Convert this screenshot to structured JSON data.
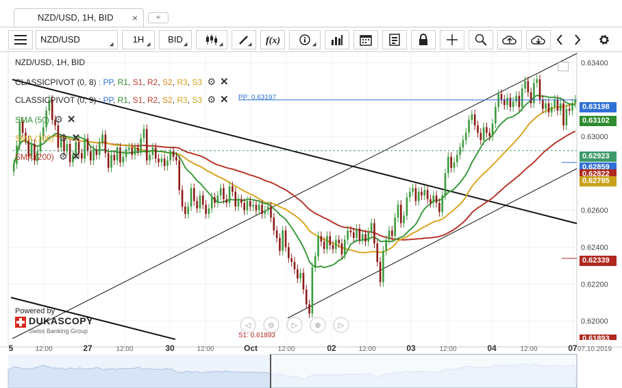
{
  "tab": {
    "title": "NZD/USD, 1H, BID",
    "close": "×",
    "new": "+"
  },
  "toolbar": {
    "instrument": "NZD/USD",
    "period": "1H",
    "side": "BID"
  },
  "legend": {
    "title": "NZD/USD, 1H, BID",
    "pivots": [
      {
        "name": "CLASSICPIVOT (0, 8)",
        "levels": [
          "PP",
          "R1",
          "S1",
          "R2",
          "S2",
          "R3",
          "S3"
        ]
      },
      {
        "name": "CLASSICPIVOT (0, 9)",
        "levels": [
          "PP",
          "R1",
          "S1",
          "R2",
          "S2",
          "R3",
          "S3"
        ]
      }
    ],
    "smas": [
      {
        "label": "SMA (50)",
        "color": "#3c9a3c"
      },
      {
        "label": "SMA (100)",
        "color": "#d9a521"
      },
      {
        "label": "SMA (200)",
        "color": "#b8352a"
      }
    ]
  },
  "branding": {
    "powered": "Powered by",
    "name": "DUKASCOPY",
    "tagline": "Swiss Banking Group"
  },
  "nav_icons": [
    "scroll-left-icon",
    "zoom-out-icon",
    "reset-zoom-icon",
    "zoom-in-icon",
    "scroll-right-icon"
  ],
  "chart_data": {
    "type": "candlestick",
    "ylim": [
      0.619,
      0.6345
    ],
    "yticks": [
      "0.63400",
      "0.63000",
      "0.62600",
      "0.62400",
      "0.62200",
      "0.62000"
    ],
    "yticks_values": [
      0.634,
      0.63,
      0.626,
      0.624,
      0.622,
      0.62
    ],
    "xticks": [
      "5",
      "12:00",
      "27",
      "12:00",
      "30",
      "12:00",
      "Oct",
      "12:00",
      "02",
      "12:00",
      "03",
      "12:00",
      "04",
      "12:00",
      "07",
      "07.10.2019"
    ],
    "xticks_bold": [
      true,
      false,
      true,
      false,
      true,
      false,
      true,
      false,
      true,
      false,
      true,
      false,
      true,
      false,
      true,
      false
    ],
    "pp_label": "PP: 0.63197",
    "s1_label": "S1: 0.61893",
    "price_tags": [
      {
        "value": 0.63198,
        "label": "0.63198",
        "color": "#2f6fd6"
      },
      {
        "value": 0.63102,
        "label": "0.63102",
        "color": "#2e8b2e"
      },
      {
        "value": 0.62923,
        "label": "0.62923",
        "color": "#3c9a6a"
      },
      {
        "value": 0.62859,
        "label": "0.62859",
        "color": "#2f6fd6"
      },
      {
        "value": 0.62822,
        "label": "0.62822",
        "color": "#b0281e"
      },
      {
        "value": 0.62785,
        "label": "0.62785",
        "color": "#c9a21a"
      },
      {
        "value": 0.62339,
        "label": "0.62339",
        "color": "#b0281e"
      },
      {
        "value": 0.61893,
        "label": "0.61893",
        "color": "#b0281e"
      }
    ],
    "close": [
      0.6285,
      0.6295,
      0.6308,
      0.6302,
      0.6298,
      0.6289,
      0.6296,
      0.6287,
      0.6292,
      0.63,
      0.6305,
      0.6314,
      0.632,
      0.6309,
      0.6306,
      0.6294,
      0.6299,
      0.6292,
      0.6296,
      0.6286,
      0.629,
      0.6297,
      0.6291,
      0.6288,
      0.6299,
      0.6292,
      0.6287,
      0.6293,
      0.629,
      0.6297,
      0.6301,
      0.6291,
      0.6283,
      0.629,
      0.6287,
      0.6294,
      0.6286,
      0.6289,
      0.6293,
      0.6294,
      0.629,
      0.6294,
      0.6292,
      0.6299,
      0.6304,
      0.6287,
      0.629,
      0.6294,
      0.6288,
      0.6286,
      0.6288,
      0.6284,
      0.6287,
      0.6292,
      0.6289,
      0.6287,
      0.6271,
      0.6262,
      0.6258,
      0.6262,
      0.6272,
      0.6265,
      0.6261,
      0.6268,
      0.6263,
      0.6258,
      0.6261,
      0.6267,
      0.6264,
      0.6268,
      0.6272,
      0.6266,
      0.6264,
      0.6273,
      0.627,
      0.6262,
      0.6266,
      0.6264,
      0.626,
      0.6265,
      0.6262,
      0.6263,
      0.626,
      0.6263,
      0.6258,
      0.626,
      0.6262,
      0.6256,
      0.6249,
      0.6245,
      0.6238,
      0.6249,
      0.624,
      0.6234,
      0.6232,
      0.6228,
      0.6223,
      0.6226,
      0.6217,
      0.6209,
      0.6204,
      0.6229,
      0.6235,
      0.6246,
      0.6243,
      0.6239,
      0.6246,
      0.6241,
      0.6239,
      0.6244,
      0.6242,
      0.6236,
      0.6244,
      0.6249,
      0.6248,
      0.6245,
      0.625,
      0.6244,
      0.6247,
      0.6243,
      0.6248,
      0.6253,
      0.6242,
      0.6232,
      0.6221,
      0.6238,
      0.6244,
      0.6249,
      0.6246,
      0.6256,
      0.6263,
      0.6253,
      0.6257,
      0.6267,
      0.627,
      0.6272,
      0.6265,
      0.627,
      0.6268,
      0.6271,
      0.6266,
      0.6264,
      0.6268,
      0.6264,
      0.6259,
      0.6268,
      0.628,
      0.6289,
      0.6283,
      0.6286,
      0.629,
      0.6294,
      0.6298,
      0.6302,
      0.6309,
      0.6312,
      0.6306,
      0.6302,
      0.6298,
      0.6305,
      0.6302,
      0.63,
      0.6307,
      0.6316,
      0.6323,
      0.632,
      0.6317,
      0.6321,
      0.6316,
      0.6319,
      0.6322,
      0.6316,
      0.6326,
      0.633,
      0.6324,
      0.6318,
      0.6329,
      0.6331,
      0.632,
      0.6315,
      0.6318,
      0.6313,
      0.6316,
      0.632,
      0.6314,
      0.6318,
      0.6306,
      0.6315,
      0.6314,
      0.6318,
      0.632
    ]
  }
}
